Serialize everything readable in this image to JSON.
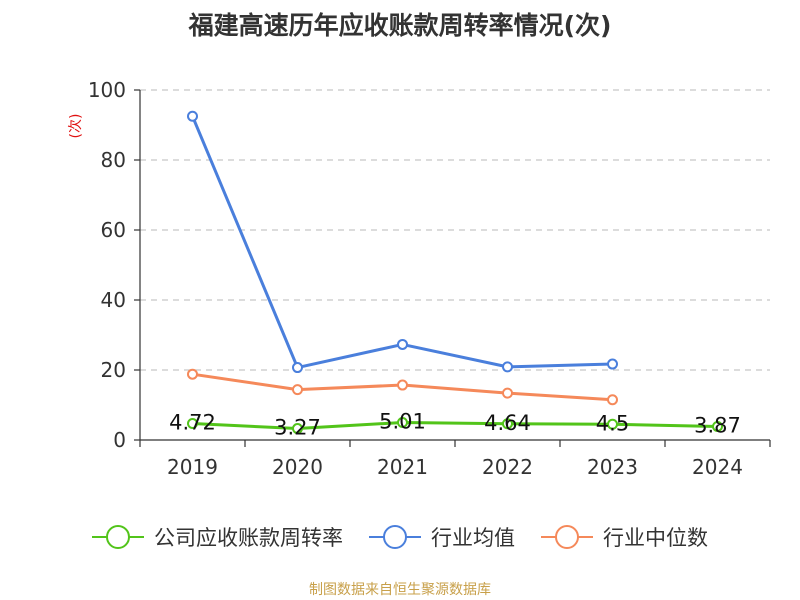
{
  "title": "福建高速历年应收账款周转率情况(次)",
  "source": "制图数据来自恒生聚源数据库",
  "chart_data": {
    "type": "line",
    "title": "福建高速历年应收账款周转率情况(次)",
    "xlabel": "",
    "ylabel": "(次)",
    "categories": [
      "2019",
      "2020",
      "2021",
      "2022",
      "2023",
      "2024"
    ],
    "ylim": [
      0,
      100
    ],
    "yticks": [
      0,
      20,
      40,
      60,
      80,
      100
    ],
    "grid": true,
    "legend_position": "bottom",
    "series": [
      {
        "name": "公司应收账款周转率",
        "color": "#52c41a",
        "values": [
          4.72,
          3.27,
          5.01,
          4.64,
          4.5,
          3.87
        ],
        "labels": [
          "4.72",
          "3.27",
          "5.01",
          "4.64",
          "4.5",
          "3.87"
        ]
      },
      {
        "name": "行业均值",
        "color": "#4a7fdc",
        "values": [
          92.5,
          20.7,
          27.3,
          20.9,
          21.7,
          null
        ]
      },
      {
        "name": "行业中位数",
        "color": "#f5895a",
        "values": [
          18.8,
          14.4,
          15.7,
          13.4,
          11.5,
          null
        ]
      }
    ]
  }
}
